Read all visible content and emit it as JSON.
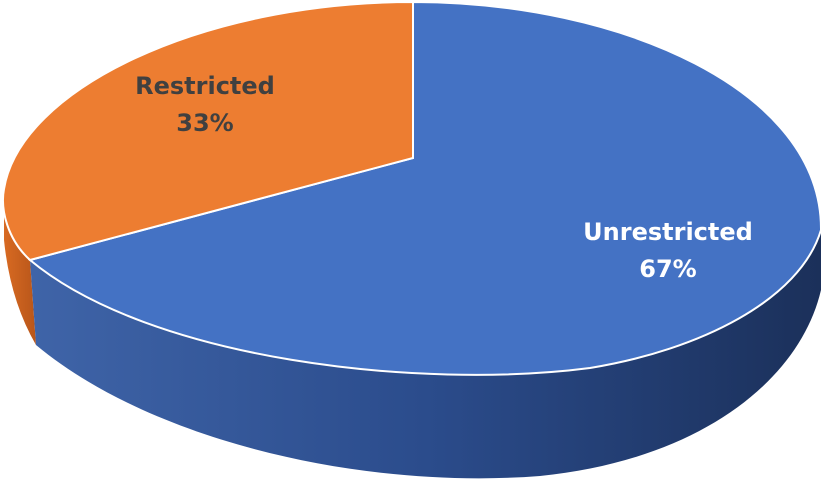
{
  "chart_data": {
    "type": "pie",
    "style": "3d",
    "title": "",
    "slices": [
      {
        "label": "Unrestricted",
        "value": 67,
        "value_label": "67%",
        "color": "#4472C4",
        "side_color": "#2B4C8C",
        "label_color": "#ffffff"
      },
      {
        "label": "Restricted",
        "value": 33,
        "value_label": "33%",
        "color": "#ED7D31",
        "side_color": "#C05F1A",
        "label_color": "#404040"
      }
    ]
  }
}
